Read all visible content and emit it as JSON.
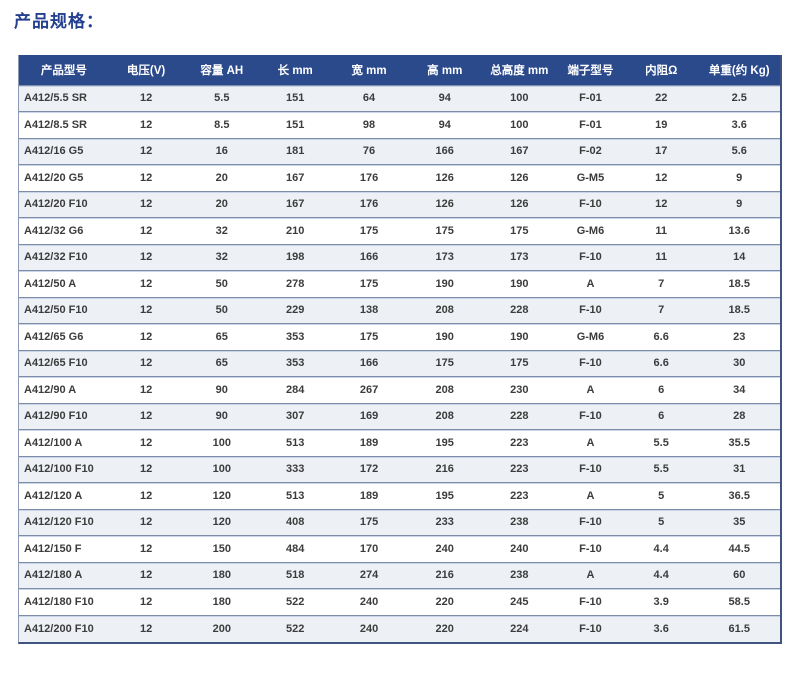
{
  "page": {
    "title": "产品规格："
  },
  "colors": {
    "header_bg": "#2b4a8c",
    "header_text": "#ffffff",
    "stripe_bg": "#edf1f6",
    "row_bg": "#ffffff",
    "title_color": "#24408e",
    "cell_text": "#3c3c3c",
    "divider": "#7f8ca8",
    "outer_border": "#3f5480"
  },
  "table": {
    "headers": [
      "产品型号",
      "电压(V)",
      "容量 AH",
      "长 mm",
      "宽 mm",
      "高 mm",
      "总高度 mm",
      "端子型号",
      "内阻Ω",
      "单重(约 Kg)"
    ],
    "rows": [
      [
        "A412/5.5 SR",
        "12",
        "5.5",
        "151",
        "64",
        "94",
        "100",
        "F-01",
        "22",
        "2.5"
      ],
      [
        "A412/8.5 SR",
        "12",
        "8.5",
        "151",
        "98",
        "94",
        "100",
        "F-01",
        "19",
        "3.6"
      ],
      [
        "A412/16 G5",
        "12",
        "16",
        "181",
        "76",
        "166",
        "167",
        "F-02",
        "17",
        "5.6"
      ],
      [
        "A412/20 G5",
        "12",
        "20",
        "167",
        "176",
        "126",
        "126",
        "G-M5",
        "12",
        "9"
      ],
      [
        "A412/20 F10",
        "12",
        "20",
        "167",
        "176",
        "126",
        "126",
        "F-10",
        "12",
        "9"
      ],
      [
        "A412/32 G6",
        "12",
        "32",
        "210",
        "175",
        "175",
        "175",
        "G-M6",
        "11",
        "13.6"
      ],
      [
        "A412/32 F10",
        "12",
        "32",
        "198",
        "166",
        "173",
        "173",
        "F-10",
        "11",
        "14"
      ],
      [
        "A412/50 A",
        "12",
        "50",
        "278",
        "175",
        "190",
        "190",
        "A",
        "7",
        "18.5"
      ],
      [
        "A412/50 F10",
        "12",
        "50",
        "229",
        "138",
        "208",
        "228",
        "F-10",
        "7",
        "18.5"
      ],
      [
        "A412/65 G6",
        "12",
        "65",
        "353",
        "175",
        "190",
        "190",
        "G-M6",
        "6.6",
        "23"
      ],
      [
        "A412/65 F10",
        "12",
        "65",
        "353",
        "166",
        "175",
        "175",
        "F-10",
        "6.6",
        "30"
      ],
      [
        "A412/90 A",
        "12",
        "90",
        "284",
        "267",
        "208",
        "230",
        "A",
        "6",
        "34"
      ],
      [
        "A412/90 F10",
        "12",
        "90",
        "307",
        "169",
        "208",
        "228",
        "F-10",
        "6",
        "28"
      ],
      [
        "A412/100 A",
        "12",
        "100",
        "513",
        "189",
        "195",
        "223",
        "A",
        "5.5",
        "35.5"
      ],
      [
        "A412/100 F10",
        "12",
        "100",
        "333",
        "172",
        "216",
        "223",
        "F-10",
        "5.5",
        "31"
      ],
      [
        "A412/120 A",
        "12",
        "120",
        "513",
        "189",
        "195",
        "223",
        "A",
        "5",
        "36.5"
      ],
      [
        "A412/120 F10",
        "12",
        "120",
        "408",
        "175",
        "233",
        "238",
        "F-10",
        "5",
        "35"
      ],
      [
        "A412/150 F",
        "12",
        "150",
        "484",
        "170",
        "240",
        "240",
        "F-10",
        "4.4",
        "44.5"
      ],
      [
        "A412/180 A",
        "12",
        "180",
        "518",
        "274",
        "216",
        "238",
        "A",
        "4.4",
        "60"
      ],
      [
        "A412/180 F10",
        "12",
        "180",
        "522",
        "240",
        "220",
        "245",
        "F-10",
        "3.9",
        "58.5"
      ],
      [
        "A412/200 F10",
        "12",
        "200",
        "522",
        "240",
        "220",
        "224",
        "F-10",
        "3.6",
        "61.5"
      ]
    ]
  }
}
